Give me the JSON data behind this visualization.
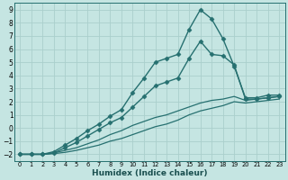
{
  "xlabel": "Humidex (Indice chaleur)",
  "ylabel": "",
  "bg_color": "#c5e5e2",
  "grid_color": "#aacfcc",
  "line_color": "#267070",
  "xlim": [
    -0.5,
    23.5
  ],
  "ylim": [
    -2.5,
    9.5
  ],
  "xticks": [
    0,
    1,
    2,
    3,
    4,
    5,
    6,
    7,
    8,
    9,
    10,
    11,
    12,
    13,
    14,
    15,
    16,
    17,
    18,
    19,
    20,
    21,
    22,
    23
  ],
  "yticks": [
    -2,
    -1,
    0,
    1,
    2,
    3,
    4,
    5,
    6,
    7,
    8,
    9
  ],
  "series": [
    {
      "x": [
        0,
        1,
        2,
        3,
        4,
        5,
        6,
        7,
        8,
        9,
        10,
        11,
        12,
        13,
        14,
        15,
        16,
        17,
        18,
        19,
        20,
        21,
        22,
        23
      ],
      "y": [
        -2,
        -2,
        -2,
        -1.8,
        -1.3,
        -0.8,
        -0.2,
        0.3,
        0.9,
        1.4,
        2.7,
        3.8,
        5.0,
        5.3,
        5.6,
        7.5,
        9.0,
        8.3,
        6.8,
        4.7,
        2.3,
        2.3,
        2.5,
        2.5
      ],
      "marker": "D",
      "markersize": 2.5,
      "linewidth": 1.0,
      "linestyle": "-"
    },
    {
      "x": [
        0,
        1,
        2,
        3,
        4,
        5,
        6,
        7,
        8,
        9,
        10,
        11,
        12,
        13,
        14,
        15,
        16,
        17,
        18,
        19,
        20,
        21,
        22,
        23
      ],
      "y": [
        -2,
        -2,
        -2,
        -1.9,
        -1.5,
        -1.1,
        -0.6,
        -0.1,
        0.4,
        0.8,
        1.6,
        2.4,
        3.2,
        3.5,
        3.8,
        5.3,
        6.6,
        5.6,
        5.5,
        4.8,
        2.2,
        2.2,
        2.3,
        2.4
      ],
      "marker": "D",
      "markersize": 2.5,
      "linewidth": 1.0,
      "linestyle": "-"
    },
    {
      "x": [
        0,
        1,
        2,
        3,
        4,
        5,
        6,
        7,
        8,
        9,
        10,
        11,
        12,
        13,
        14,
        15,
        16,
        17,
        18,
        19,
        20,
        21,
        22,
        23
      ],
      "y": [
        -2,
        -2,
        -2,
        -1.9,
        -1.7,
        -1.5,
        -1.2,
        -0.9,
        -0.5,
        -0.2,
        0.2,
        0.5,
        0.8,
        1.0,
        1.3,
        1.6,
        1.9,
        2.1,
        2.2,
        2.4,
        2.1,
        2.2,
        2.3,
        2.4
      ],
      "marker": null,
      "markersize": 0,
      "linewidth": 0.9,
      "linestyle": "-"
    },
    {
      "x": [
        0,
        1,
        2,
        3,
        4,
        5,
        6,
        7,
        8,
        9,
        10,
        11,
        12,
        13,
        14,
        15,
        16,
        17,
        18,
        19,
        20,
        21,
        22,
        23
      ],
      "y": [
        -2,
        -2,
        -2,
        -1.95,
        -1.85,
        -1.7,
        -1.5,
        -1.3,
        -1.0,
        -0.8,
        -0.5,
        -0.2,
        0.1,
        0.3,
        0.6,
        1.0,
        1.3,
        1.5,
        1.7,
        2.0,
        1.9,
        2.0,
        2.1,
        2.2
      ],
      "marker": null,
      "markersize": 0,
      "linewidth": 0.9,
      "linestyle": "-"
    }
  ]
}
